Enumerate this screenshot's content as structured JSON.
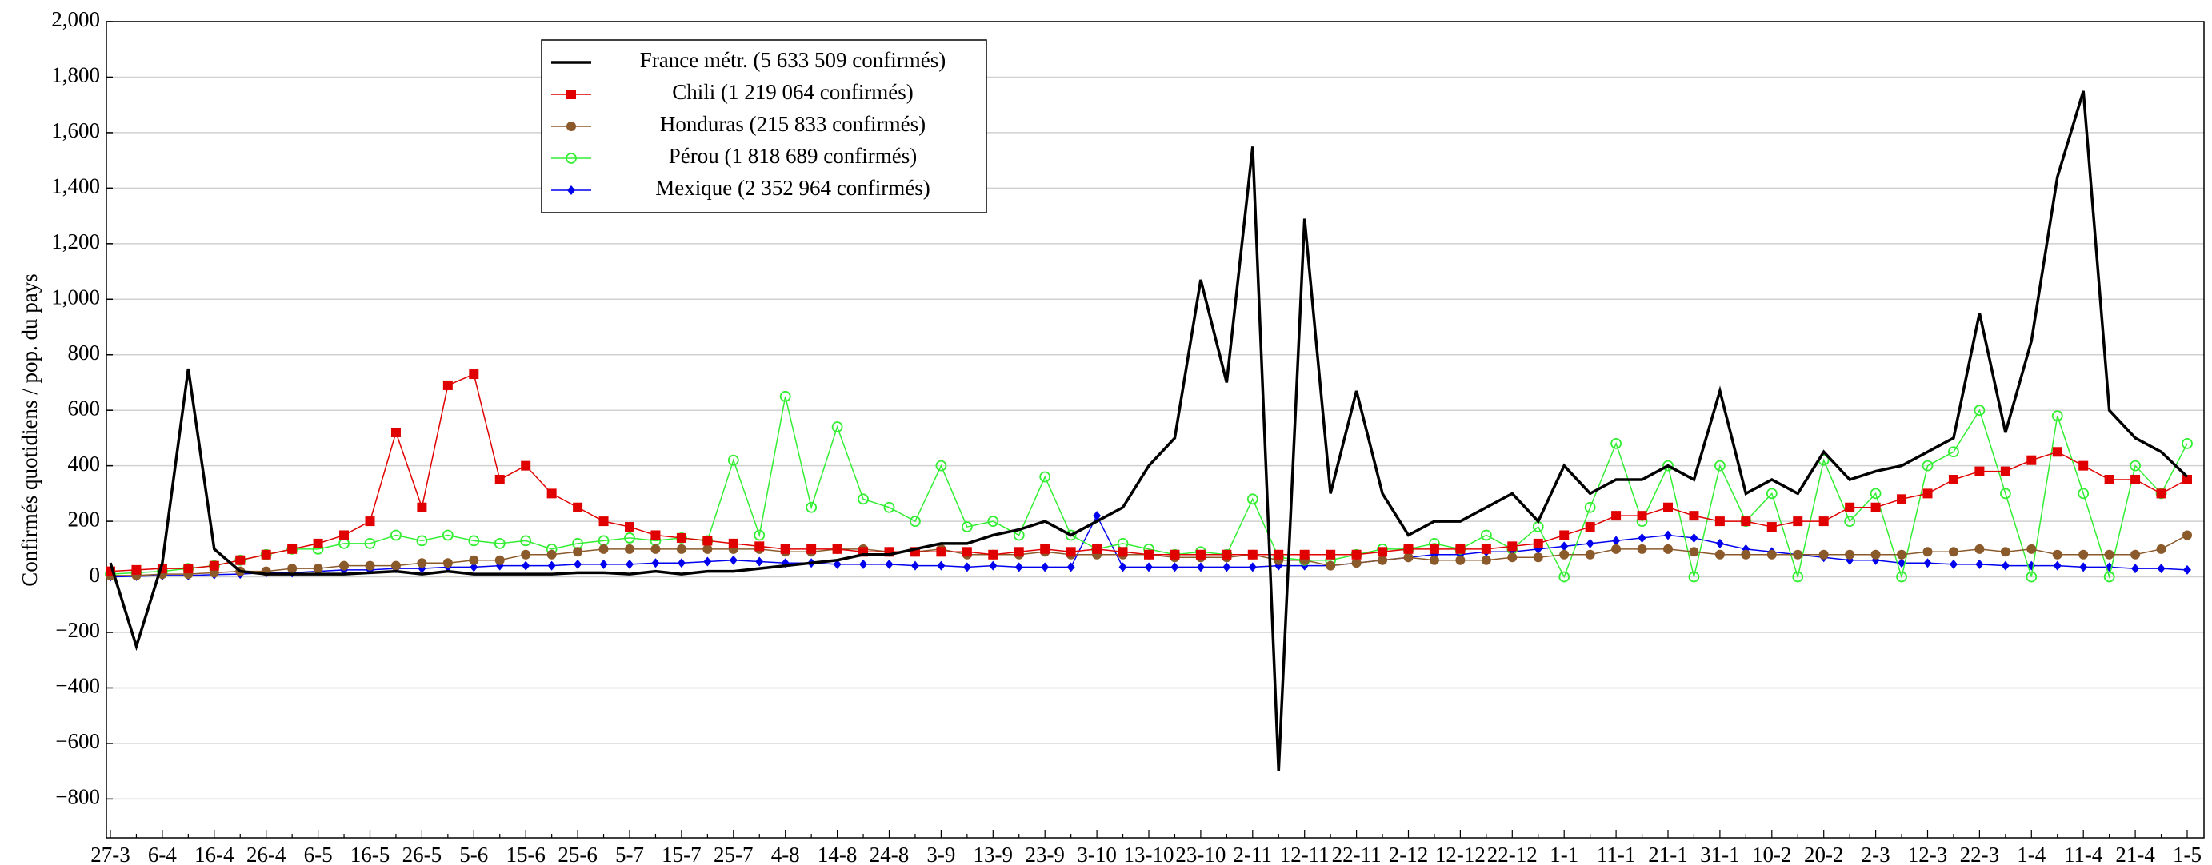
{
  "chart_data": {
    "type": "line",
    "y_label": "Confirmés quotidiens / pop. du pays",
    "categories": [
      "27-3",
      null,
      "6-4",
      null,
      "16-4",
      null,
      "26-4",
      null,
      "6-5",
      null,
      "16-5",
      null,
      "26-5",
      null,
      "5-6",
      null,
      "15-6",
      null,
      "25-6",
      null,
      "5-7",
      null,
      "15-7",
      null,
      "25-7",
      null,
      "4-8",
      null,
      "14-8",
      null,
      "24-8",
      null,
      "3-9",
      null,
      "13-9",
      null,
      "23-9",
      null,
      "3-10",
      null,
      "13-10",
      null,
      "23-10",
      null,
      "2-11",
      null,
      "12-11",
      null,
      "22-11",
      null,
      "2-12",
      null,
      "12-12",
      null,
      "22-12",
      null,
      "1-1",
      null,
      "11-1",
      null,
      "21-1",
      null,
      "31-1",
      null,
      "10-2",
      null,
      "20-2",
      null,
      "2-3",
      null,
      "12-3",
      null,
      "22-3",
      null,
      "1-4",
      null,
      "11-4",
      null,
      "21-4",
      null,
      "1-5"
    ],
    "ylim": [
      -940,
      2000
    ],
    "yticks": [
      {
        "value": -800,
        "label": "−800"
      },
      {
        "value": -600,
        "label": "−600"
      },
      {
        "value": -400,
        "label": "−400"
      },
      {
        "value": -200,
        "label": "−200"
      },
      0,
      200,
      400,
      600,
      800,
      {
        "value": 1000,
        "label": "1,000"
      },
      {
        "value": 1200,
        "label": "1,200"
      },
      {
        "value": 1400,
        "label": "1,400"
      },
      {
        "value": 1600,
        "label": "1,600"
      },
      {
        "value": 1800,
        "label": "1,800"
      },
      {
        "value": 2000,
        "label": "2,000"
      }
    ],
    "grid": true,
    "series": [
      {
        "name": "France métr. (5 633 509 confirmés)",
        "color": "#000000",
        "marker": "none",
        "values": [
          50,
          -250,
          50,
          750,
          100,
          20,
          10,
          10,
          10,
          10,
          15,
          20,
          10,
          20,
          10,
          10,
          10,
          10,
          15,
          15,
          10,
          20,
          10,
          20,
          20,
          30,
          40,
          50,
          60,
          80,
          80,
          100,
          120,
          120,
          150,
          170,
          200,
          150,
          200,
          250,
          400,
          500,
          1070,
          700,
          1550,
          -700,
          1290,
          300,
          670,
          300,
          150,
          200,
          200,
          250,
          300,
          200,
          400,
          300,
          350,
          350,
          400,
          350,
          670,
          300,
          350,
          300,
          450,
          350,
          380,
          400,
          450,
          500,
          950,
          520,
          850,
          1440,
          1750,
          600,
          500,
          450,
          360
        ]
      },
      {
        "name": "Chili (1 219 064 confirmés)",
        "color": "#e00000",
        "marker": "square",
        "values": [
          20,
          25,
          30,
          30,
          40,
          60,
          80,
          100,
          120,
          150,
          200,
          520,
          250,
          690,
          730,
          350,
          400,
          300,
          250,
          200,
          180,
          150,
          140,
          130,
          120,
          110,
          100,
          100,
          100,
          90,
          90,
          90,
          90,
          90,
          80,
          90,
          100,
          90,
          100,
          90,
          80,
          80,
          80,
          80,
          80,
          80,
          80,
          80,
          80,
          90,
          100,
          100,
          100,
          100,
          110,
          120,
          150,
          180,
          220,
          220,
          250,
          220,
          200,
          200,
          180,
          200,
          200,
          250,
          250,
          280,
          300,
          350,
          380,
          380,
          420,
          450,
          400,
          350,
          350,
          300,
          350
        ]
      },
      {
        "name": "Honduras (215 833 confirmés)",
        "color": "#8b5a2b",
        "marker": "circle",
        "values": [
          5,
          5,
          10,
          10,
          15,
          20,
          20,
          30,
          30,
          40,
          40,
          40,
          50,
          50,
          60,
          60,
          80,
          80,
          90,
          100,
          100,
          100,
          100,
          100,
          100,
          100,
          90,
          90,
          100,
          100,
          90,
          90,
          100,
          80,
          80,
          80,
          90,
          80,
          80,
          80,
          80,
          70,
          70,
          70,
          80,
          60,
          60,
          40,
          50,
          60,
          70,
          60,
          60,
          60,
          70,
          70,
          80,
          80,
          100,
          100,
          100,
          90,
          80,
          80,
          80,
          80,
          80,
          80,
          80,
          80,
          90,
          90,
          100,
          90,
          100,
          80,
          80,
          80,
          80,
          100,
          150
        ]
      },
      {
        "name": "Pérou (1 818 689 confirmés)",
        "color": "#33ee33",
        "marker": "circle-open",
        "values": [
          10,
          15,
          20,
          30,
          40,
          60,
          80,
          100,
          100,
          120,
          120,
          150,
          130,
          150,
          130,
          120,
          130,
          100,
          120,
          130,
          140,
          130,
          140,
          130,
          420,
          150,
          650,
          250,
          540,
          280,
          250,
          200,
          400,
          180,
          200,
          150,
          360,
          150,
          100,
          120,
          100,
          80,
          90,
          80,
          280,
          70,
          60,
          60,
          80,
          100,
          100,
          120,
          100,
          150,
          100,
          180,
          0,
          250,
          480,
          200,
          400,
          0,
          400,
          200,
          300,
          0,
          420,
          200,
          300,
          0,
          400,
          450,
          600,
          300,
          0,
          580,
          300,
          0,
          400,
          300,
          480
        ]
      },
      {
        "name": "Mexique (2 352 964 confirmés)",
        "color": "#0000ee",
        "marker": "diamond",
        "values": [
          0,
          2,
          5,
          5,
          8,
          10,
          15,
          15,
          20,
          25,
          25,
          30,
          30,
          35,
          35,
          40,
          40,
          40,
          45,
          45,
          45,
          50,
          50,
          55,
          60,
          55,
          50,
          50,
          45,
          45,
          45,
          40,
          40,
          35,
          40,
          35,
          35,
          35,
          220,
          35,
          35,
          35,
          35,
          35,
          35,
          40,
          40,
          40,
          50,
          60,
          70,
          80,
          80,
          90,
          90,
          100,
          110,
          120,
          130,
          140,
          150,
          140,
          120,
          100,
          90,
          80,
          70,
          60,
          60,
          50,
          50,
          45,
          45,
          40,
          40,
          40,
          35,
          35,
          30,
          30,
          25
        ]
      }
    ]
  }
}
